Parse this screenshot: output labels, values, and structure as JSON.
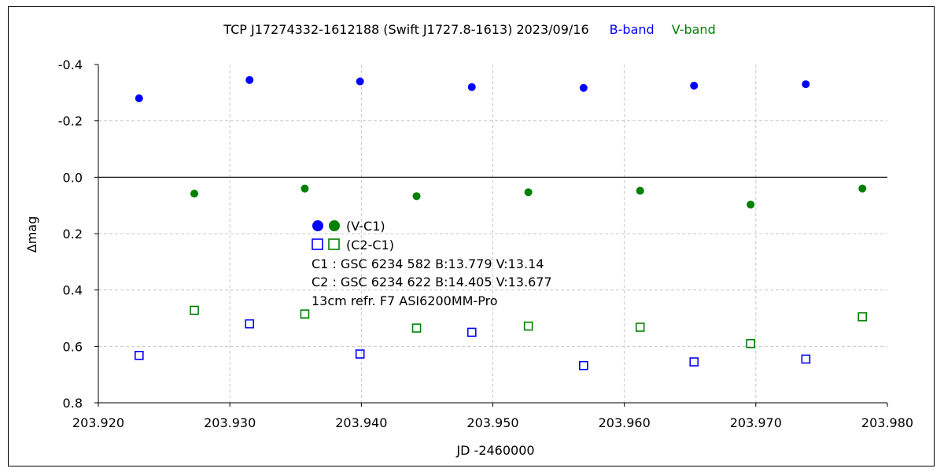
{
  "chart_data": {
    "type": "scatter",
    "title_parts": {
      "main": "TCP J17274332-1612188 (Swift J1727.8-1613)   2023/09/16",
      "b_band": "B-band",
      "v_band": "V-band"
    },
    "xlabel": "JD -2460000",
    "ylabel": "Δmag",
    "xlim": [
      203.92,
      203.98
    ],
    "ylim": [
      -0.4,
      0.8
    ],
    "y_inverted": true,
    "grid": true,
    "x_ticks": [
      203.92,
      203.93,
      203.94,
      203.95,
      203.96,
      203.97,
      203.98
    ],
    "x_tick_labels": [
      "203.920",
      "203.930",
      "203.940",
      "203.950",
      "203.960",
      "203.970",
      "203.980"
    ],
    "y_ticks": [
      -0.4,
      -0.2,
      0.0,
      0.2,
      0.4,
      0.6,
      0.8
    ],
    "y_tick_labels": [
      "-0.4",
      "-0.2",
      "0.0",
      "0.2",
      "0.4",
      "0.6",
      "0.8"
    ],
    "colors": {
      "b_band": "#0000ff",
      "v_band": "#008000"
    },
    "series": [
      {
        "name": "B-band (V-C1)",
        "band": "B",
        "marker": "filled-circle",
        "x": [
          203.9231,
          203.9315,
          203.9399,
          203.9484,
          203.9569,
          203.9653,
          203.9738
        ],
        "y": [
          -0.28,
          -0.345,
          -0.34,
          -0.32,
          -0.317,
          -0.325,
          -0.33
        ]
      },
      {
        "name": "V-band (V-C1)",
        "band": "V",
        "marker": "filled-circle",
        "x": [
          203.9273,
          203.9357,
          203.9442,
          203.9527,
          203.9612,
          203.9696,
          203.9781
        ],
        "y": [
          0.058,
          0.04,
          0.067,
          0.053,
          0.048,
          0.097,
          0.04
        ]
      },
      {
        "name": "B-band (C2-C1)",
        "band": "B",
        "marker": "open-square",
        "x": [
          203.9231,
          203.9315,
          203.9399,
          203.9484,
          203.9569,
          203.9653,
          203.9738
        ],
        "y": [
          0.632,
          0.52,
          0.627,
          0.55,
          0.668,
          0.655,
          0.645
        ]
      },
      {
        "name": "V-band (C2-C1)",
        "band": "V",
        "marker": "open-square",
        "x": [
          203.9273,
          203.9357,
          203.9442,
          203.9527,
          203.9612,
          203.9696,
          203.9781
        ],
        "y": [
          0.472,
          0.485,
          0.535,
          0.528,
          0.532,
          0.59,
          0.495
        ]
      }
    ],
    "legend": {
      "filled_label": "(V-C1)",
      "open_label": "(C2-C1)"
    },
    "annotations": [
      "C1 : GSC 6234 582   B:13.779   V:13.14",
      "C2 : GSC 6234 622   B:14.405   V:13.677",
      "13cm refr. F7     ASI6200MM-Pro"
    ]
  }
}
